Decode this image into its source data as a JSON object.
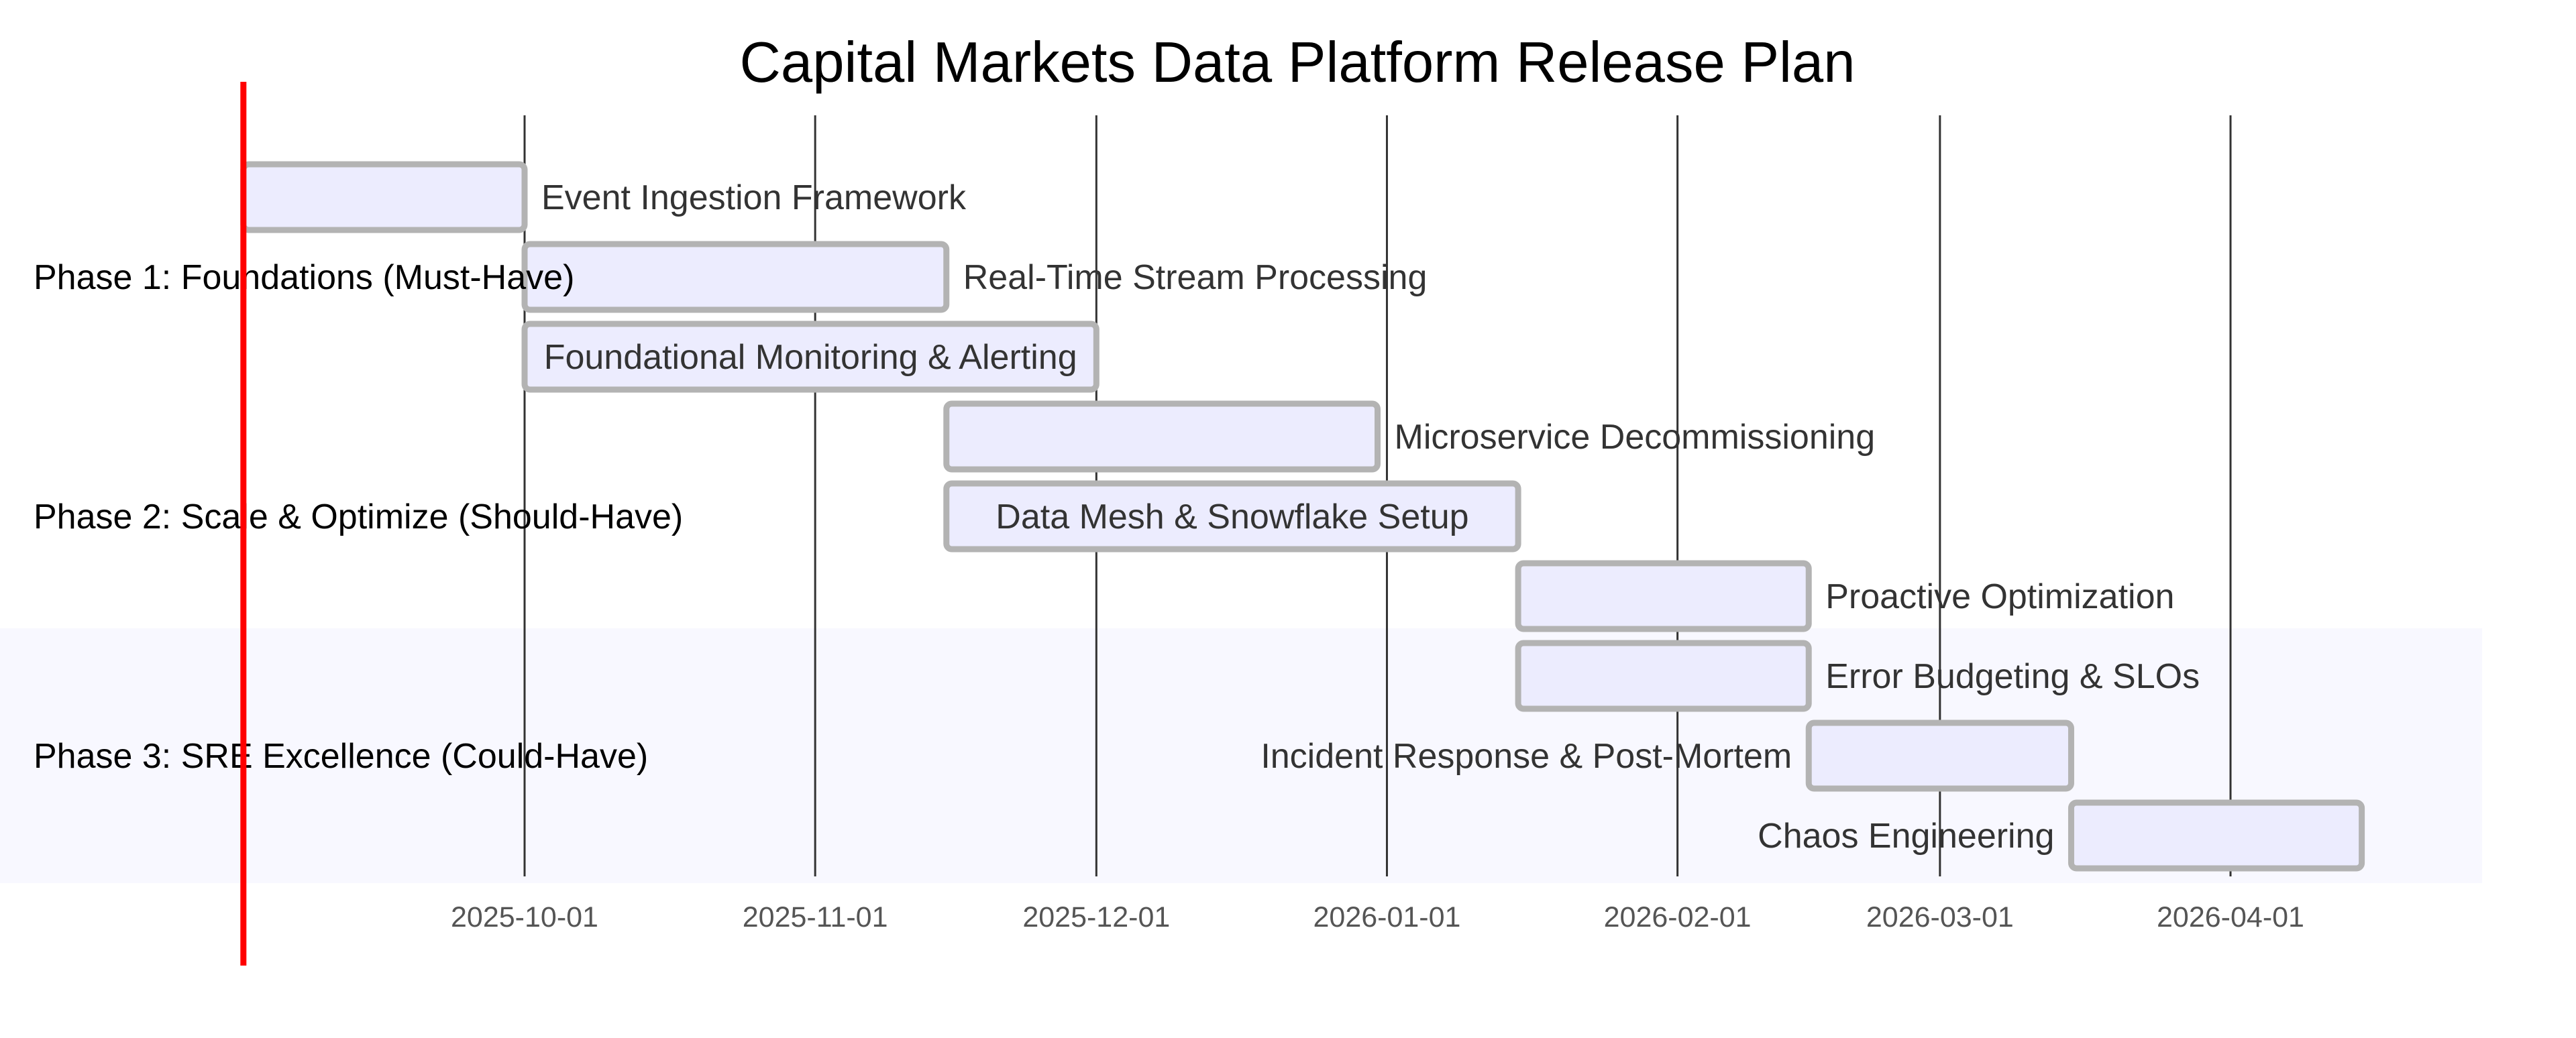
{
  "chart_data": {
    "type": "gantt",
    "title": "Capital Markets Data Platform Release Plan",
    "x_axis": {
      "type": "date",
      "range": [
        "2025-09-01",
        "2026-04-30"
      ],
      "ticks": [
        "2025-10-01",
        "2025-11-01",
        "2025-12-01",
        "2026-01-01",
        "2026-02-01",
        "2026-03-01",
        "2026-04-01"
      ],
      "grid": true
    },
    "today_marker": "2025-09-01",
    "sections": [
      {
        "name": "Phase 1: Foundations (Must-Have)"
      },
      {
        "name": "Phase 2: Scale & Optimize (Should-Have)"
      },
      {
        "name": "Phase 3: SRE Excellence (Could-Have)"
      }
    ],
    "tasks": [
      {
        "name": "Event Ingestion Framework",
        "section": 0,
        "start": "2025-09-01",
        "end": "2025-10-01"
      },
      {
        "name": "Real-Time Stream Processing",
        "section": 0,
        "start": "2025-10-01",
        "end": "2025-11-15"
      },
      {
        "name": "Foundational Monitoring & Alerting",
        "section": 0,
        "start": "2025-10-01",
        "end": "2025-12-01"
      },
      {
        "name": "Microservice Decommissioning",
        "section": 1,
        "start": "2025-11-15",
        "end": "2025-12-31"
      },
      {
        "name": "Data Mesh & Snowflake Setup",
        "section": 1,
        "start": "2025-11-15",
        "end": "2026-01-15"
      },
      {
        "name": "Proactive Optimization",
        "section": 1,
        "start": "2026-01-15",
        "end": "2026-02-15"
      },
      {
        "name": "Error Budgeting & SLOs",
        "section": 2,
        "start": "2026-01-15",
        "end": "2026-02-15"
      },
      {
        "name": "Incident Response & Post-Mortem",
        "section": 2,
        "start": "2026-02-15",
        "end": "2026-03-15"
      },
      {
        "name": "Chaos Engineering",
        "section": 2,
        "start": "2026-03-15",
        "end": "2026-04-15"
      }
    ],
    "colors": {
      "bar_fill": "#ececfe",
      "bar_stroke": "#b3b3b3",
      "today_line": "#ff0000",
      "grid": "#333333",
      "section_band_alt": "#f8f8ff"
    }
  }
}
